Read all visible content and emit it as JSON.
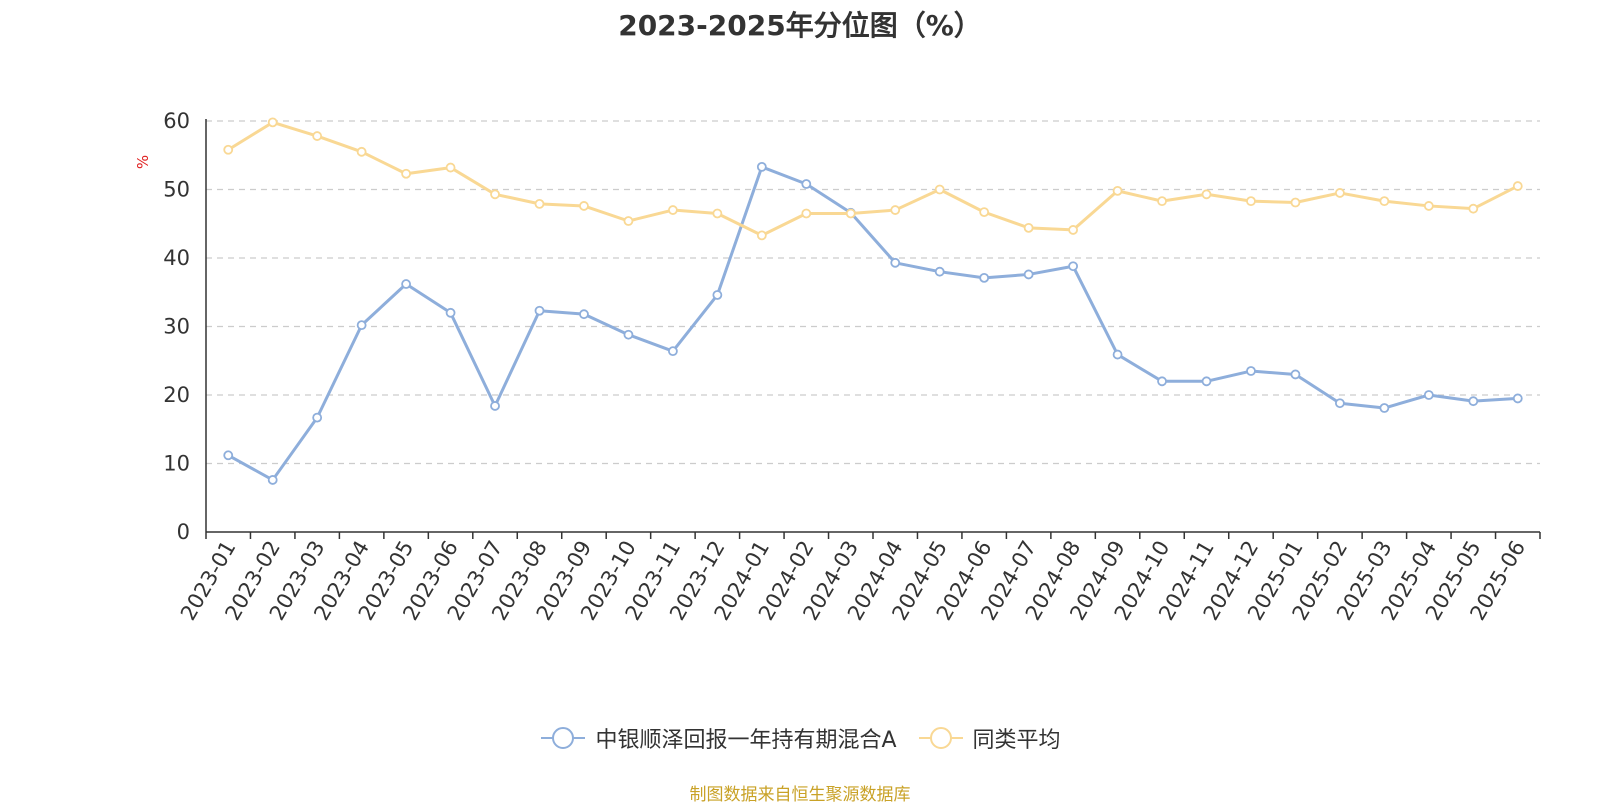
{
  "chart_data": {
    "type": "line",
    "title": "2023-2025年分位图（%）",
    "ylabel": "%",
    "xlabel": "",
    "ylim": [
      0,
      60
    ],
    "yticks": [
      0,
      10,
      20,
      30,
      40,
      50,
      60
    ],
    "grid": true,
    "legend_position": "bottom",
    "categories": [
      "2023-01",
      "2023-02",
      "2023-03",
      "2023-04",
      "2023-05",
      "2023-06",
      "2023-07",
      "2023-08",
      "2023-09",
      "2023-10",
      "2023-11",
      "2023-12",
      "2024-01",
      "2024-02",
      "2024-03",
      "2024-04",
      "2024-05",
      "2024-06",
      "2024-07",
      "2024-08",
      "2024-09",
      "2024-10",
      "2024-11",
      "2024-12",
      "2025-01",
      "2025-02",
      "2025-03",
      "2025-04",
      "2025-05",
      "2025-06"
    ],
    "series": [
      {
        "name": "中银顺泽回报一年持有期混合A",
        "color": "#8eaedb",
        "values": [
          11.2,
          7.6,
          16.7,
          30.2,
          36.2,
          32.0,
          18.4,
          32.3,
          31.8,
          28.8,
          26.4,
          34.6,
          53.3,
          50.8,
          46.6,
          39.3,
          38.0,
          37.1,
          37.6,
          38.8,
          25.9,
          22.0,
          22.0,
          23.5,
          23.0,
          18.8,
          18.1,
          20.0,
          19.1,
          19.5
        ]
      },
      {
        "name": "同类平均",
        "color": "#f9d894",
        "values": [
          55.8,
          59.8,
          57.8,
          55.5,
          52.3,
          53.2,
          49.3,
          47.9,
          47.6,
          45.4,
          47.0,
          46.5,
          43.3,
          46.5,
          46.5,
          47.0,
          50.0,
          46.7,
          44.4,
          44.1,
          49.8,
          48.3,
          49.3,
          48.3,
          48.1,
          49.5,
          48.3,
          47.6,
          47.2,
          50.5
        ]
      }
    ]
  },
  "source_note": "制图数据来自恒生聚源数据库"
}
